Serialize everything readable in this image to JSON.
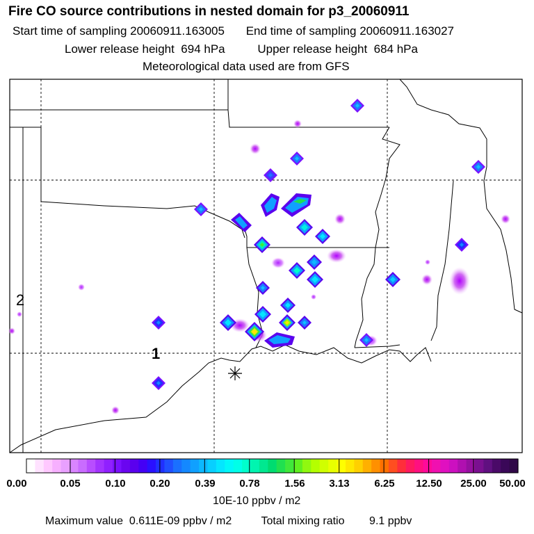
{
  "title": "Fire CO source contributions in nested domain for p3_20060911",
  "sampling": {
    "start_label": "Start time of sampling",
    "start_value": "20060911.163005",
    "end_label": "End time of sampling",
    "end_value": "20060911.163027"
  },
  "release": {
    "lower_label": "Lower release height",
    "lower_value": "694 hPa",
    "upper_label": "Upper release height",
    "upper_value": "684 hPa"
  },
  "met_note": "Meteorological data used are from GFS",
  "map": {
    "label_1": "1",
    "label_2": "2",
    "release_marker": "asterisk-marker"
  },
  "colorbar": {
    "labels": [
      "0.00",
      "0.05",
      "0.10",
      "0.20",
      "0.39",
      "0.78",
      "1.56",
      "3.13",
      "6.25",
      "12.50",
      "25.00",
      "50.00"
    ],
    "colors": [
      "#ffffff",
      "#ffe2ff",
      "#ffc8ff",
      "#f7b0ff",
      "#e9a0ff",
      "#d985ff",
      "#c96cff",
      "#b84dff",
      "#a333ff",
      "#9020ff",
      "#7a10ff",
      "#6a05f0",
      "#5a00ee",
      "#4400f5",
      "#2a10ff",
      "#2030ff",
      "#2050ff",
      "#1a70ff",
      "#1488ff",
      "#10a0ff",
      "#0cb8ff",
      "#08cfff",
      "#04e6ff",
      "#00f8f8",
      "#00ffe8",
      "#00ffcc",
      "#00f5b0",
      "#00e890",
      "#00dc70",
      "#20e050",
      "#40e83a",
      "#60f020",
      "#90f810",
      "#b4ff00",
      "#d0ff00",
      "#e8ff00",
      "#ffff00",
      "#ffe800",
      "#ffd000",
      "#ffb000",
      "#ff9000",
      "#ff7000",
      "#ff4e20",
      "#ff2e3a",
      "#ff1a60",
      "#ff1080",
      "#ff0a9a",
      "#f010b0",
      "#e010c0",
      "#cc10c0",
      "#b010b0",
      "#9610a0",
      "#7a1090",
      "#601080",
      "#4a0a68",
      "#3a0858",
      "#300848"
    ],
    "units": "10E-10 ppbv / m2"
  },
  "footer": {
    "max_label": "Maximum value",
    "max_value": "0.611E-09 ppbv / m2",
    "mix_label": "Total mixing ratio",
    "mix_value": "9.1 ppbv"
  }
}
